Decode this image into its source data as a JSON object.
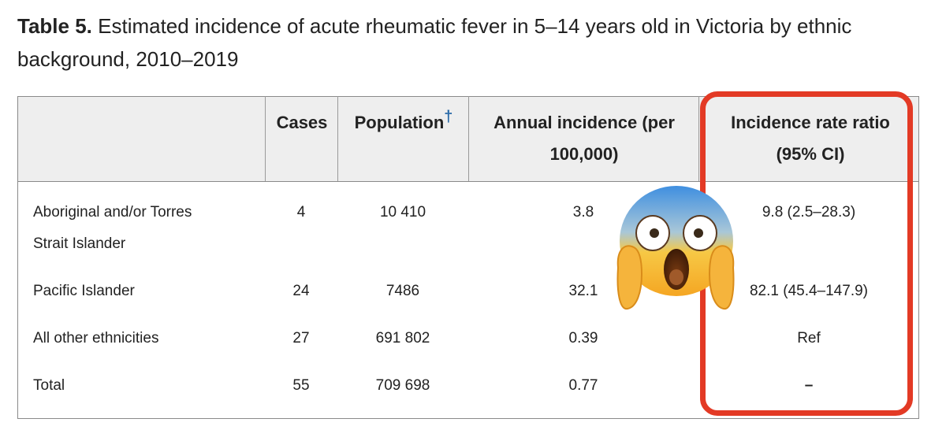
{
  "caption": {
    "label": "Table 5.",
    "text": "Estimated incidence of acute rheumatic fever in 5–14 years old in Victoria by ethnic background, 2010–2019"
  },
  "table": {
    "headers": {
      "group": "",
      "cases": "Cases",
      "population": "Population",
      "population_footnote": "†",
      "incidence_line1": "Annual incidence (per",
      "incidence_line2": "100,000)",
      "irr_line1": "Incidence rate ratio",
      "irr_line2": "(95% CI)"
    },
    "rows": [
      {
        "group_line1": "Aboriginal and/or Torres",
        "group_line2": "Strait Islander",
        "cases": "4",
        "population": "10 410",
        "incidence": "3.8",
        "irr": "9.8 (2.5–28.3)"
      },
      {
        "group_line1": "Pacific Islander",
        "cases": "24",
        "population": "7486",
        "incidence": "32.1",
        "irr": "82.1 (45.4–147.9)"
      },
      {
        "group_line1": "All other ethnicities",
        "cases": "27",
        "population": "691 802",
        "incidence": "0.39",
        "irr": "Ref"
      },
      {
        "group_line1": "Total",
        "cases": "55",
        "population": "709 698",
        "incidence": "0.77",
        "irr": "–"
      }
    ]
  },
  "annotations": {
    "highlight_color": "#e33a25",
    "emoji": "face-screaming-in-fear"
  }
}
